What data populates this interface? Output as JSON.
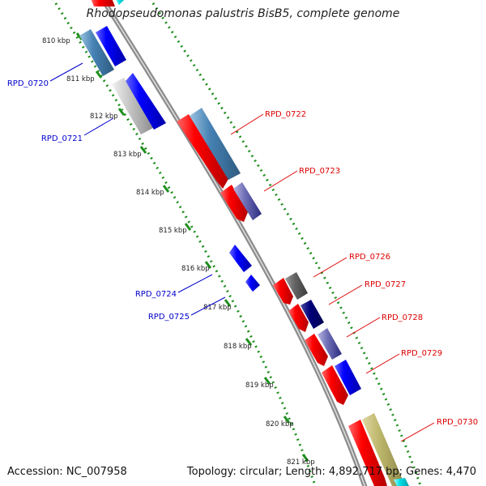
{
  "title": "Rhodopseudomonas palustris BisB5, complete genome",
  "footer": {
    "accession": "Accession: NC_007958",
    "topology": "Topology: circular; Length: 4,892,717 bp; Genes: 4,470"
  },
  "colors": {
    "reverse_gene_label": "#0000cc",
    "forward_gene_label": "#dd0000",
    "backbone": "#8c8c8c",
    "tick_dots": "#1e8f1e",
    "ruler_text": "#222222"
  },
  "ticks": [
    {
      "label": "810 kbp"
    },
    {
      "label": "811 kbp"
    },
    {
      "label": "812 kbp"
    },
    {
      "label": "813 kbp"
    },
    {
      "label": "814 kbp"
    },
    {
      "label": "815 kbp"
    },
    {
      "label": "816 kbp"
    },
    {
      "label": "817 kbp"
    },
    {
      "label": "818 kbp"
    },
    {
      "label": "819 kbp"
    },
    {
      "label": "820 kbp"
    },
    {
      "label": "821 kbp"
    }
  ],
  "gene_labels": {
    "RPD_0720": "RPD_0720",
    "RPD_0721": "RPD_0721",
    "RPD_0722": "RPD_0722",
    "RPD_0723": "RPD_0723",
    "RPD_0724": "RPD_0724",
    "RPD_0725": "RPD_0725",
    "RPD_0726": "RPD_0726",
    "RPD_0727": "RPD_0727",
    "RPD_0728": "RPD_0728",
    "RPD_0729": "RPD_0729",
    "RPD_0730": "RPD_0730"
  }
}
